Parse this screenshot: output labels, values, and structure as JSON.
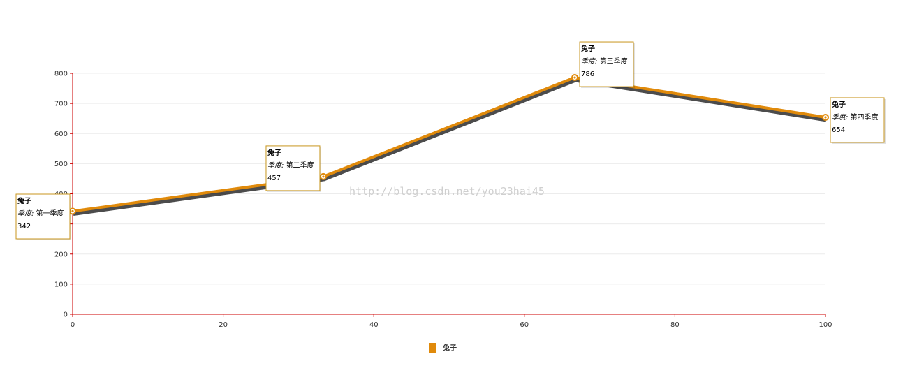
{
  "chart_data": {
    "type": "line",
    "xlim": [
      0,
      100
    ],
    "ylim": [
      0,
      800
    ],
    "xticks": [
      0,
      20,
      40,
      60,
      80,
      100
    ],
    "yticks": [
      0,
      100,
      200,
      300,
      400,
      500,
      600,
      700,
      800
    ],
    "grid": true,
    "legend_position": "bottom-center",
    "series": [
      {
        "name": "兔子",
        "color": "#e08a0b",
        "points": [
          {
            "x": 0,
            "y": 342,
            "category": "第一季度"
          },
          {
            "x": 33.3,
            "y": 457,
            "category": "第二季度"
          },
          {
            "x": 66.7,
            "y": 786,
            "category": "第三季度"
          },
          {
            "x": 100,
            "y": 654,
            "category": "第四季度"
          }
        ]
      }
    ],
    "tooltip_key": "季度:",
    "watermark": "http://blog.csdn.net/you23hai45"
  }
}
